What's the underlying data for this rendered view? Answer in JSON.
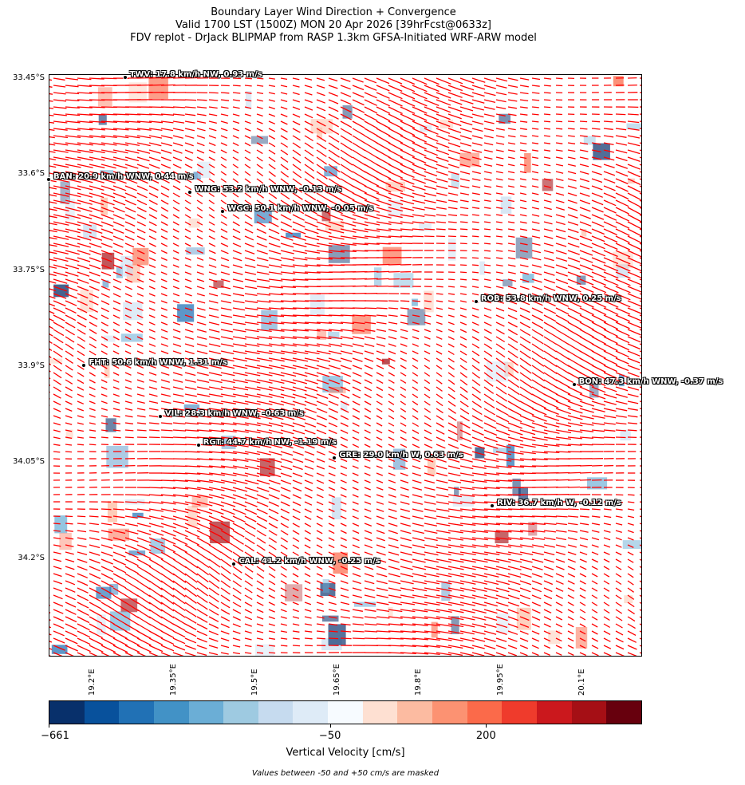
{
  "title": {
    "line1": "Boundary Layer Wind Direction + Convergence",
    "line2": "Valid 1700 LST (1500Z) MON 20 Apr 2026 [39hrFcst@0633z]",
    "line3": "FDV replot - DrJack BLIPMAP from RASP 1.3km GFSA-Initiated WRF-ARW model"
  },
  "map": {
    "lat_range": [
      -33.45,
      -34.36
    ],
    "lon_range": [
      19.12,
      20.21
    ],
    "lat_ticks": [
      "33.45°S",
      "33.6°S",
      "33.75°S",
      "33.9°S",
      "34.05°S",
      "34.2°S"
    ],
    "lat_tick_values": [
      -33.45,
      -33.6,
      -33.75,
      -33.9,
      -34.05,
      -34.2
    ],
    "lon_ticks": [
      "19.2°E",
      "19.35°E",
      "19.5°E",
      "19.65°E",
      "19.8°E",
      "19.95°E",
      "20.1°E"
    ],
    "lon_tick_values": [
      19.2,
      19.35,
      19.5,
      19.65,
      19.8,
      19.95,
      20.1
    ],
    "wind_vector_color": "#ff0000",
    "stations": [
      {
        "label": "TWV: 17.8 km/h NW, 0.93 m/s",
        "lon": 19.26,
        "lat": -33.455
      },
      {
        "label": "BAN: 20.9 km/h WNW, 0.44 m/s",
        "lon": 19.12,
        "lat": -33.615
      },
      {
        "label": "WNG: 53.2 km/h WNW, -0.13 m/s",
        "lon": 19.38,
        "lat": -33.635
      },
      {
        "label": "WGC: 50.1 km/h WNW, -0.05 m/s",
        "lon": 19.44,
        "lat": -33.665
      },
      {
        "label": "ROB: 53.8 km/h WNW, 0.25 m/s",
        "lon": 19.905,
        "lat": -33.805
      },
      {
        "label": "FHT: 50.6 km/h WNW, 1.31 m/s",
        "lon": 19.185,
        "lat": -33.905
      },
      {
        "label": "BON: 47.3 km/h WNW, -0.37 m/s",
        "lon": 20.085,
        "lat": -33.935
      },
      {
        "label": "VIL: 28.3 km/h WNW, -0.63 m/s",
        "lon": 19.325,
        "lat": -33.985
      },
      {
        "label": "RGT: 44.7 km/h NW, -1.19 m/s",
        "lon": 19.395,
        "lat": -34.03
      },
      {
        "label": "GRE: 29.0 km/h W, 0.63 m/s",
        "lon": 19.645,
        "lat": -34.05
      },
      {
        "label": "RIV: 36.7 km/h W, -0.12 m/s",
        "lon": 19.935,
        "lat": -34.125
      },
      {
        "label": "CAL: 41.2 km/h WNW, -0.25 m/s",
        "lon": 19.46,
        "lat": -34.215
      }
    ]
  },
  "colorbar": {
    "colors": [
      "#08306b",
      "#08519c",
      "#2171b5",
      "#4292c6",
      "#6baed6",
      "#9ecae1",
      "#c6dbef",
      "#deebf7",
      "#f7fbff",
      "#fee0d2",
      "#fcbba1",
      "#fc9272",
      "#fb6a4a",
      "#ef3b2c",
      "#cb181d",
      "#a50f15",
      "#67000d"
    ],
    "tick_labels": [
      "−661",
      "−50",
      "200"
    ],
    "tick_fractions": [
      0.0,
      0.474,
      0.737
    ],
    "label": "Vertical Velocity [cm/s]",
    "note": "Values between -50 and +50 cm/s are masked"
  }
}
